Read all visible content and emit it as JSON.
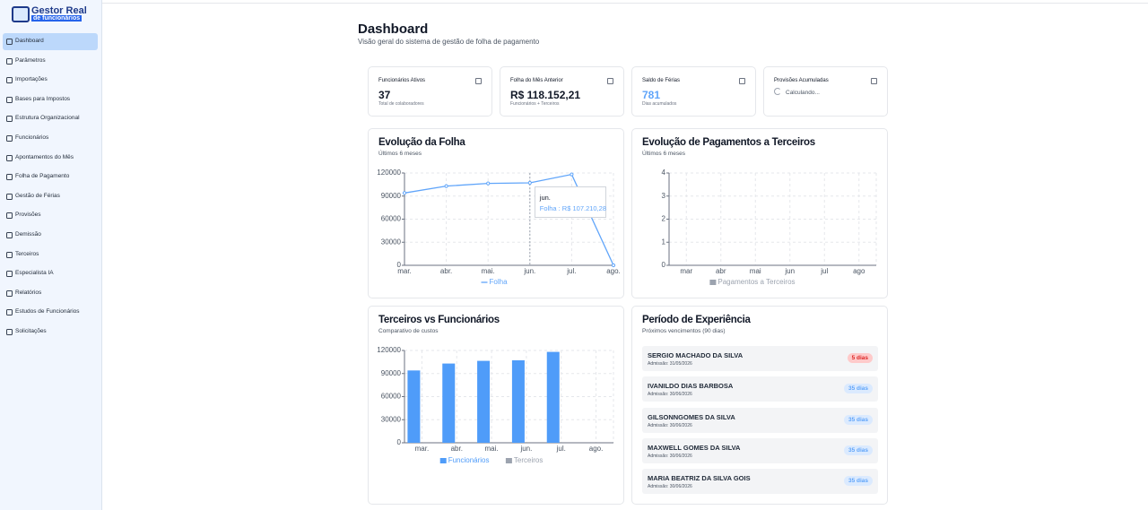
{
  "sidebar": {
    "logo": {
      "title": "Gestor Real",
      "subtitle": "de funcionários"
    },
    "active": 0,
    "menu": [
      "Dashboard",
      "Parâmetros",
      "Importações",
      "Bases para Impostos",
      "Estrutura Organizacional",
      "Funcionários",
      "Apontamentos do Mês",
      "Folha de Pagamento",
      "Gestão de Férias",
      "Provisões",
      "Demissão",
      "Terceiros",
      "Especialista IA",
      "Relatórios",
      "Estudos de Funcionários",
      "Solicitações"
    ]
  },
  "header": {
    "title": "Dashboard",
    "subtitle": "Visão geral do sistema de gestão de folha de pagamento"
  },
  "cards": [
    {
      "title": "Funcionários Ativos",
      "value": 37,
      "note": "Total de colaboradores"
    },
    {
      "title": "Folha do Mês Anterior",
      "value": "R$ 118.152,21",
      "note": "Funcionários + Terceiros"
    },
    {
      "title": "Saldo de Férias",
      "value": 781,
      "note": "Dias acumulados"
    },
    {
      "title": "Provisões Acumuladas",
      "status": "Calculando..."
    }
  ],
  "chart_data": [
    {
      "type": "line",
      "title": "Evolução da Folha",
      "subtitle": "Últimos 6 meses",
      "categories": [
        "mar.",
        "abr.",
        "mai.",
        "jun.",
        "jul.",
        "ago."
      ],
      "series": [
        {
          "name": "Folha",
          "color": "#60a5fa",
          "values": [
            94000,
            103000,
            106500,
            107210.28,
            118152.21,
            0
          ]
        }
      ],
      "ylim": [
        0,
        120000
      ],
      "yticks": [
        0,
        30000,
        60000,
        90000,
        120000
      ],
      "grid": true,
      "tooltip": {
        "title": "jun.",
        "text": "Folha : R$ 107.210,28"
      }
    },
    {
      "type": "bar",
      "title": "Evolução de Pagamentos a Terceiros",
      "subtitle": "Últimos 6 meses",
      "categories": [
        "mar",
        "abr",
        "mai",
        "jun",
        "jul",
        "ago"
      ],
      "series": [
        {
          "name": "Pagamentos a Terceiros",
          "color": "#9ca3af",
          "values": [
            0,
            0,
            0,
            0,
            0,
            0
          ]
        }
      ],
      "ylim": [
        0,
        4
      ],
      "yticks": [
        0,
        1,
        2,
        3,
        4
      ],
      "grid": true
    },
    {
      "type": "bar",
      "title": "Terceiros vs Funcionários",
      "subtitle": "Comparativo de custos",
      "categories": [
        "mar.",
        "abr.",
        "mai.",
        "jun.",
        "jul.",
        "ago."
      ],
      "series": [
        {
          "name": "Funcionários",
          "color": "#4f9cf9",
          "values": [
            94000,
            103000,
            106500,
            107210.28,
            118152.21,
            0
          ]
        },
        {
          "name": "Terceiros",
          "color": "#9ca3af",
          "values": [
            0,
            0,
            0,
            0,
            0,
            0
          ]
        }
      ],
      "ylim": [
        0,
        120000
      ],
      "yticks": [
        0,
        30000,
        60000,
        90000,
        120000
      ],
      "grid": true
    }
  ],
  "experience": {
    "title": "Período de Experiência",
    "subtitle": "Próximos vencimentos (90 dias)",
    "items": [
      {
        "name": "SERGIO MACHADO DA SILVA",
        "admission": "Admissão: 31/05/2026",
        "badge": "5 dias",
        "urgent": true
      },
      {
        "name": "IVANILDO DIAS BARBOSA",
        "admission": "Admissão: 30/06/2026",
        "badge": "35 dias"
      },
      {
        "name": "GILSONNGOMES DA SILVA",
        "admission": "Admissão: 30/06/2026",
        "badge": "35 dias"
      },
      {
        "name": "MAXWELL GOMES DA SILVA",
        "admission": "Admissão: 30/06/2026",
        "badge": "35 dias"
      },
      {
        "name": "MARIA BEATRIZ DA SILVA GOIS",
        "admission": "Admissão: 30/06/2026",
        "badge": "35 dias"
      }
    ]
  }
}
